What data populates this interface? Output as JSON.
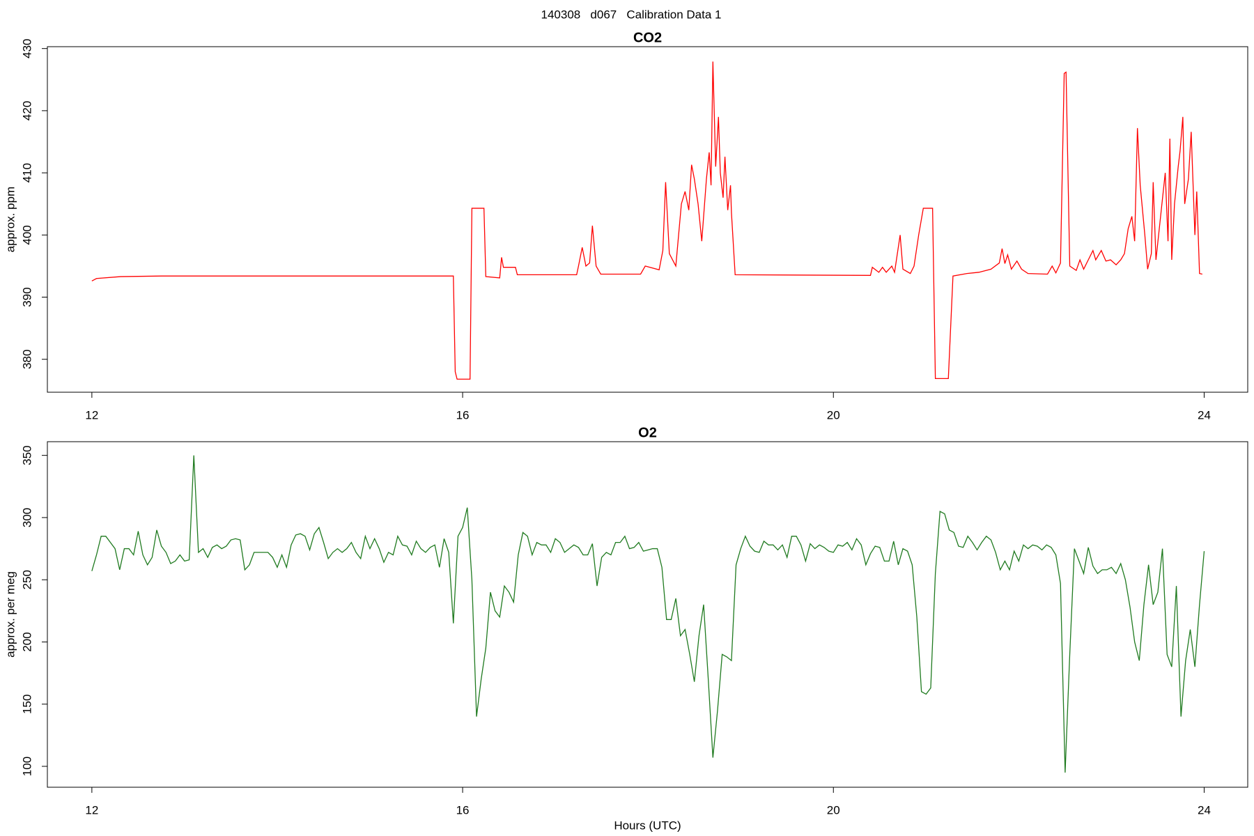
{
  "title": "140308   d067   Calibration Data 1",
  "chart_data": [
    {
      "type": "line",
      "title": "CO2",
      "ylabel": "approx. ppm",
      "color": "#ff0000",
      "xlim": [
        11.52,
        24.47
      ],
      "xticks": [
        12,
        16,
        20,
        24
      ],
      "ylim": [
        374.7,
        430.3
      ],
      "yticks": [
        380,
        390,
        400,
        410,
        420,
        430
      ],
      "x": [
        12.0,
        12.05,
        12.31,
        12.75,
        14.49,
        15.9,
        15.92,
        15.94,
        16.08,
        16.1,
        16.23,
        16.25,
        16.4,
        16.42,
        16.44,
        16.57,
        16.59,
        17.23,
        17.25,
        17.29,
        17.33,
        17.37,
        17.4,
        17.44,
        17.49,
        17.92,
        17.97,
        18.12,
        18.16,
        18.19,
        18.23,
        18.3,
        18.36,
        18.4,
        18.44,
        18.47,
        18.5,
        18.54,
        18.58,
        18.63,
        18.66,
        18.68,
        18.7,
        18.73,
        18.76,
        18.78,
        18.81,
        18.83,
        18.86,
        18.89,
        18.9,
        18.94,
        20.4,
        20.42,
        20.49,
        20.53,
        20.57,
        20.63,
        20.66,
        20.72,
        20.75,
        20.83,
        20.87,
        20.92,
        20.97,
        21.07,
        21.1,
        21.24,
        21.29,
        21.44,
        21.57,
        21.7,
        21.79,
        21.82,
        21.85,
        21.88,
        21.92,
        21.98,
        22.03,
        22.1,
        22.31,
        22.36,
        22.4,
        22.45,
        22.49,
        22.51,
        22.55,
        22.62,
        22.66,
        22.7,
        22.75,
        22.8,
        22.83,
        22.89,
        22.94,
        22.99,
        23.05,
        23.1,
        23.14,
        23.18,
        23.22,
        23.25,
        23.28,
        23.31,
        23.36,
        23.39,
        23.43,
        23.45,
        23.48,
        23.53,
        23.58,
        23.61,
        23.63,
        23.65,
        23.68,
        23.72,
        23.74,
        23.77,
        23.79,
        23.83,
        23.86,
        23.9,
        23.92,
        23.95,
        23.98
      ],
      "values": [
        392.6,
        393.0,
        393.3,
        393.4,
        393.4,
        393.4,
        378,
        376.8,
        376.8,
        404.3,
        404.3,
        393.3,
        393.1,
        396.4,
        394.8,
        394.8,
        393.6,
        393.6,
        395,
        398,
        395,
        395.5,
        401.5,
        395,
        393.7,
        393.7,
        395,
        394.4,
        397.5,
        408.5,
        397,
        395,
        405,
        407,
        404,
        411.3,
        409,
        405,
        399,
        409,
        413.3,
        408,
        427.9,
        411,
        419,
        410,
        406,
        412.6,
        404,
        408,
        403.6,
        393.6,
        393.5,
        394.8,
        394,
        394.8,
        394,
        395,
        394,
        400,
        394.5,
        393.8,
        395,
        400,
        404.3,
        404.3,
        376.9,
        376.9,
        393.4,
        393.8,
        394,
        394.5,
        395.5,
        397.8,
        395.4,
        396.8,
        394.5,
        395.8,
        394.5,
        393.8,
        393.7,
        395,
        393.9,
        395.5,
        426,
        426.2,
        395,
        394.3,
        396,
        394.5,
        396,
        397.5,
        396,
        397.5,
        395.8,
        396,
        395.2,
        396,
        397,
        401,
        403,
        399,
        417.2,
        408,
        400,
        394.5,
        397,
        408.5,
        396,
        403,
        410,
        399,
        415.5,
        396,
        405,
        411,
        413.5,
        419,
        405,
        409,
        416.6,
        400,
        407,
        393.8,
        393.7
      ]
    },
    {
      "type": "line",
      "title": "O2",
      "ylabel": "approx. per meg",
      "xlabel": "Hours (UTC)",
      "color": "#1f7a1f",
      "xlim": [
        11.52,
        24.47
      ],
      "xticks": [
        12,
        16,
        20,
        24
      ],
      "ylim": [
        83.2,
        361
      ],
      "yticks": [
        100,
        150,
        200,
        250,
        300,
        350
      ],
      "x": [
        12,
        12.05,
        12.1,
        12.15,
        12.2,
        12.25,
        12.3,
        12.35,
        12.4,
        12.45,
        12.5,
        12.55,
        12.6,
        12.65,
        12.7,
        12.75,
        12.8,
        12.85,
        12.9,
        12.95,
        13,
        13.05,
        13.1,
        13.15,
        13.2,
        13.25,
        13.3,
        13.35,
        13.4,
        13.45,
        13.5,
        13.55,
        13.6,
        13.65,
        13.7,
        13.75,
        13.8,
        13.85,
        13.9,
        13.95,
        14,
        14.05,
        14.1,
        14.15,
        14.2,
        14.25,
        14.3,
        14.35,
        14.4,
        14.45,
        14.5,
        14.55,
        14.6,
        14.65,
        14.7,
        14.75,
        14.8,
        14.85,
        14.9,
        14.95,
        15,
        15.05,
        15.1,
        15.15,
        15.2,
        15.25,
        15.3,
        15.35,
        15.4,
        15.45,
        15.5,
        15.55,
        15.6,
        15.65,
        15.7,
        15.75,
        15.8,
        15.85,
        15.9,
        15.95,
        16,
        16.05,
        16.1,
        16.15,
        16.2,
        16.25,
        16.3,
        16.35,
        16.4,
        16.45,
        16.5,
        16.55,
        16.6,
        16.65,
        16.7,
        16.75,
        16.8,
        16.85,
        16.9,
        16.95,
        17,
        17.05,
        17.1,
        17.15,
        17.2,
        17.25,
        17.3,
        17.35,
        17.4,
        17.45,
        17.5,
        17.55,
        17.6,
        17.65,
        17.7,
        17.75,
        17.8,
        17.85,
        17.9,
        17.95,
        18,
        18.05,
        18.1,
        18.15,
        18.2,
        18.25,
        18.3,
        18.35,
        18.4,
        18.45,
        18.5,
        18.55,
        18.6,
        18.65,
        18.7,
        18.75,
        18.8,
        18.85,
        18.9,
        18.95,
        19,
        19.05,
        19.1,
        19.15,
        19.2,
        19.25,
        19.3,
        19.35,
        19.4,
        19.45,
        19.5,
        19.55,
        19.6,
        19.65,
        19.7,
        19.75,
        19.8,
        19.85,
        19.9,
        19.95,
        20,
        20.05,
        20.1,
        20.15,
        20.2,
        20.25,
        20.3,
        20.35,
        20.4,
        20.45,
        20.5,
        20.55,
        20.6,
        20.65,
        20.7,
        20.75,
        20.8,
        20.85,
        20.9,
        20.95,
        21,
        21.05,
        21.1,
        21.15,
        21.2,
        21.25,
        21.3,
        21.35,
        21.4,
        21.45,
        21.5,
        21.55,
        21.6,
        21.65,
        21.7,
        21.75,
        21.8,
        21.85,
        21.9,
        21.95,
        22,
        22.05,
        22.1,
        22.15,
        22.2,
        22.25,
        22.3,
        22.35,
        22.4,
        22.45,
        22.5,
        22.55,
        22.6,
        22.65,
        22.7,
        22.75,
        22.8,
        22.85,
        22.9,
        22.95,
        23,
        23.05,
        23.1,
        23.15,
        23.2,
        23.25,
        23.3,
        23.35,
        23.4,
        23.45,
        23.5,
        23.55,
        23.6,
        23.65,
        23.7,
        23.75,
        23.8,
        23.85,
        23.9,
        23.95,
        24
      ],
      "values": [
        257,
        270,
        285,
        285,
        280,
        275,
        258,
        275,
        275,
        270,
        289,
        270,
        262,
        268,
        290,
        277,
        272,
        263,
        265,
        270,
        265,
        266,
        350,
        272,
        275,
        268,
        276,
        278,
        275,
        277,
        282,
        283,
        282,
        258,
        262,
        272,
        272,
        272,
        272,
        268,
        260,
        270,
        260,
        278,
        286,
        287,
        285,
        274,
        287,
        292,
        280,
        267,
        272,
        275,
        272,
        275,
        280,
        272,
        267,
        285,
        275,
        283,
        275,
        264,
        272,
        270,
        285,
        278,
        277,
        270,
        281,
        275,
        272,
        276,
        278,
        260,
        283,
        272,
        215,
        285,
        292,
        308,
        250,
        140,
        170,
        195,
        240,
        225,
        220,
        245,
        240,
        232,
        270,
        288,
        285,
        270,
        280,
        278,
        278,
        272,
        283,
        280,
        272,
        275,
        278,
        276,
        270,
        270,
        279,
        245,
        268,
        272,
        270,
        280,
        280,
        285,
        275,
        276,
        280,
        273,
        274,
        275,
        275,
        260,
        218,
        218,
        235,
        205,
        210,
        190,
        168,
        205,
        230,
        170,
        107,
        145,
        190,
        188,
        185,
        262,
        275,
        285,
        277,
        273,
        272,
        281,
        278,
        278,
        274,
        278,
        268,
        285,
        285,
        278,
        265,
        279,
        275,
        278,
        276,
        273,
        272,
        278,
        277,
        280,
        274,
        283,
        278,
        262,
        271,
        277,
        276,
        265,
        265,
        281,
        262,
        275,
        273,
        262,
        220,
        160,
        158,
        163,
        255,
        305,
        303,
        290,
        288,
        277,
        276,
        285,
        280,
        274,
        280,
        285,
        282,
        272,
        258,
        265,
        258,
        273,
        265,
        278,
        275,
        278,
        277,
        274,
        278,
        276,
        270,
        247,
        95,
        190,
        275,
        265,
        255,
        276,
        261,
        255,
        258,
        258,
        260,
        255,
        263,
        250,
        228,
        200,
        185,
        230,
        262,
        230,
        240,
        275,
        190,
        180,
        245,
        140,
        185,
        210,
        180,
        230,
        273
      ]
    }
  ]
}
